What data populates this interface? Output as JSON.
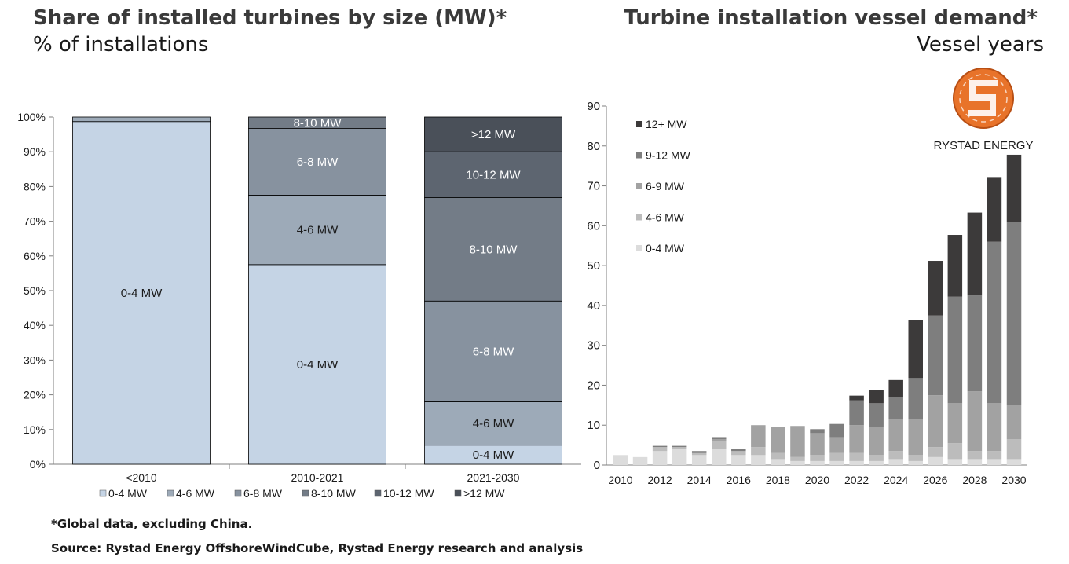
{
  "colors": {
    "mw_0_4": "#c5d4e5",
    "mw_4_6": "#9daab8",
    "mw_6_8": "#87929f",
    "mw_8_10": "#737c87",
    "mw_10_12": "#5d6570",
    "mw_12_plus": "#4a5059",
    "v_0_4": "#dcdcdc",
    "v_4_6": "#bcbcbc",
    "v_6_9": "#a2a2a2",
    "v_9_12": "#7e7e7e",
    "v_12_plus": "#3c3a3a",
    "logo_orange": "#e8732a"
  },
  "left_chart": {
    "title": "Share of installed turbines by size (MW)*",
    "subtitle": "% of installations"
  },
  "right_chart": {
    "title": "Turbine installation vessel demand*",
    "subtitle": "Vessel years"
  },
  "logo": {
    "text": "RYSTAD ENERGY",
    "icon": "rystad-energy-logo-icon"
  },
  "footnote": "*Global data, excluding China.",
  "source": "Source: Rystad Energy OffshoreWindCube, Rystad Energy research and analysis",
  "chart_data": [
    {
      "type": "bar",
      "stacked": true,
      "percent": true,
      "title": "Share of installed turbines by size (MW)*",
      "subtitle": "% of installations",
      "categories": [
        "<2010",
        "2010-2021",
        "2021-2030"
      ],
      "ylim": [
        0,
        100
      ],
      "yticks": [
        "0%",
        "10%",
        "20%",
        "30%",
        "40%",
        "50%",
        "60%",
        "70%",
        "80%",
        "90%",
        "100%"
      ],
      "legend_position": "bottom",
      "series": [
        {
          "name": "0-4 MW",
          "color_key": "mw_0_4",
          "values": [
            98.7,
            57.5,
            5.5
          ],
          "labels": [
            "0-4 MW",
            "0-4 MW",
            "0-4 MW"
          ]
        },
        {
          "name": "4-6 MW",
          "color_key": "mw_4_6",
          "values": [
            1.3,
            20.0,
            12.5
          ],
          "labels": [
            "",
            "4-6 MW",
            "4-6 MW"
          ]
        },
        {
          "name": "6-8 MW",
          "color_key": "mw_6_8",
          "values": [
            0,
            19.2,
            29.0
          ],
          "labels": [
            "",
            "6-8 MW",
            "6-8 MW"
          ]
        },
        {
          "name": "8-10 MW",
          "color_key": "mw_8_10",
          "values": [
            0,
            3.3,
            29.8
          ],
          "labels": [
            "",
            "8-10 MW",
            "8-10 MW"
          ]
        },
        {
          "name": "10-12 MW",
          "color_key": "mw_10_12",
          "values": [
            0,
            0,
            13.2
          ],
          "labels": [
            "",
            "",
            "10-12 MW"
          ]
        },
        {
          "name": ">12 MW",
          "color_key": "mw_12_plus",
          "values": [
            0,
            0,
            10.0
          ],
          "labels": [
            "",
            "",
            ">12 MW"
          ]
        }
      ]
    },
    {
      "type": "bar",
      "stacked": true,
      "title": "Turbine installation vessel demand*",
      "subtitle": "Vessel years",
      "categories": [
        "2010",
        "2011",
        "2012",
        "2013",
        "2014",
        "2015",
        "2016",
        "2017",
        "2018",
        "2019",
        "2020",
        "2021",
        "2022",
        "2023",
        "2024",
        "2025",
        "2026",
        "2027",
        "2028",
        "2029",
        "2030"
      ],
      "xtick_labels": [
        "2010",
        "",
        "2012",
        "",
        "2014",
        "",
        "2016",
        "",
        "2018",
        "",
        "2020",
        "",
        "2022",
        "",
        "2024",
        "",
        "2026",
        "",
        "2028",
        "",
        "2030"
      ],
      "ylim": [
        0,
        90
      ],
      "yticks": [
        "0",
        "10",
        "20",
        "30",
        "40",
        "50",
        "60",
        "70",
        "80",
        "90"
      ],
      "legend_position": "top-left",
      "legend_order": [
        "12+ MW",
        "9-12 MW",
        "6-9 MW",
        "4-6 MW",
        "0-4 MW"
      ],
      "series": [
        {
          "name": "0-4 MW",
          "color_key": "v_0_4",
          "values": [
            2.5,
            2.0,
            3.5,
            4.0,
            2.5,
            4.0,
            2.5,
            2.5,
            1.5,
            1.0,
            1.0,
            1.0,
            1.0,
            1.0,
            1.5,
            1.0,
            2.0,
            1.5,
            1.5,
            1.5,
            1.5
          ]
        },
        {
          "name": "4-6 MW",
          "color_key": "v_4_6",
          "values": [
            0,
            0,
            1.0,
            0.5,
            0.5,
            2.0,
            1.0,
            2.0,
            1.5,
            1.0,
            1.5,
            2.0,
            2.0,
            1.5,
            2.0,
            1.5,
            2.5,
            4.0,
            2.0,
            2.0,
            5.0
          ]
        },
        {
          "name": "6-9 MW",
          "color_key": "v_6_9",
          "values": [
            0,
            0,
            0,
            0,
            0,
            0.5,
            0,
            5.5,
            6.5,
            7.8,
            5.5,
            4.0,
            7.0,
            7.0,
            8.0,
            9.0,
            13.0,
            10.0,
            15.0,
            12.0,
            8.5
          ]
        },
        {
          "name": "9-12 MW",
          "color_key": "v_9_12",
          "values": [
            0,
            0,
            0.3,
            0.3,
            0.5,
            0.5,
            0.5,
            0,
            0,
            0,
            1.0,
            3.3,
            6.2,
            6.0,
            5.5,
            10.3,
            20.0,
            26.7,
            24.0,
            40.5,
            46.0
          ]
        },
        {
          "name": "12+ MW",
          "color_key": "v_12_plus",
          "values": [
            0,
            0,
            0,
            0,
            0,
            0,
            0,
            0,
            0,
            0,
            0,
            0,
            1.2,
            3.3,
            4.3,
            14.5,
            13.7,
            15.5,
            20.8,
            16.2,
            16.8
          ]
        }
      ]
    }
  ]
}
